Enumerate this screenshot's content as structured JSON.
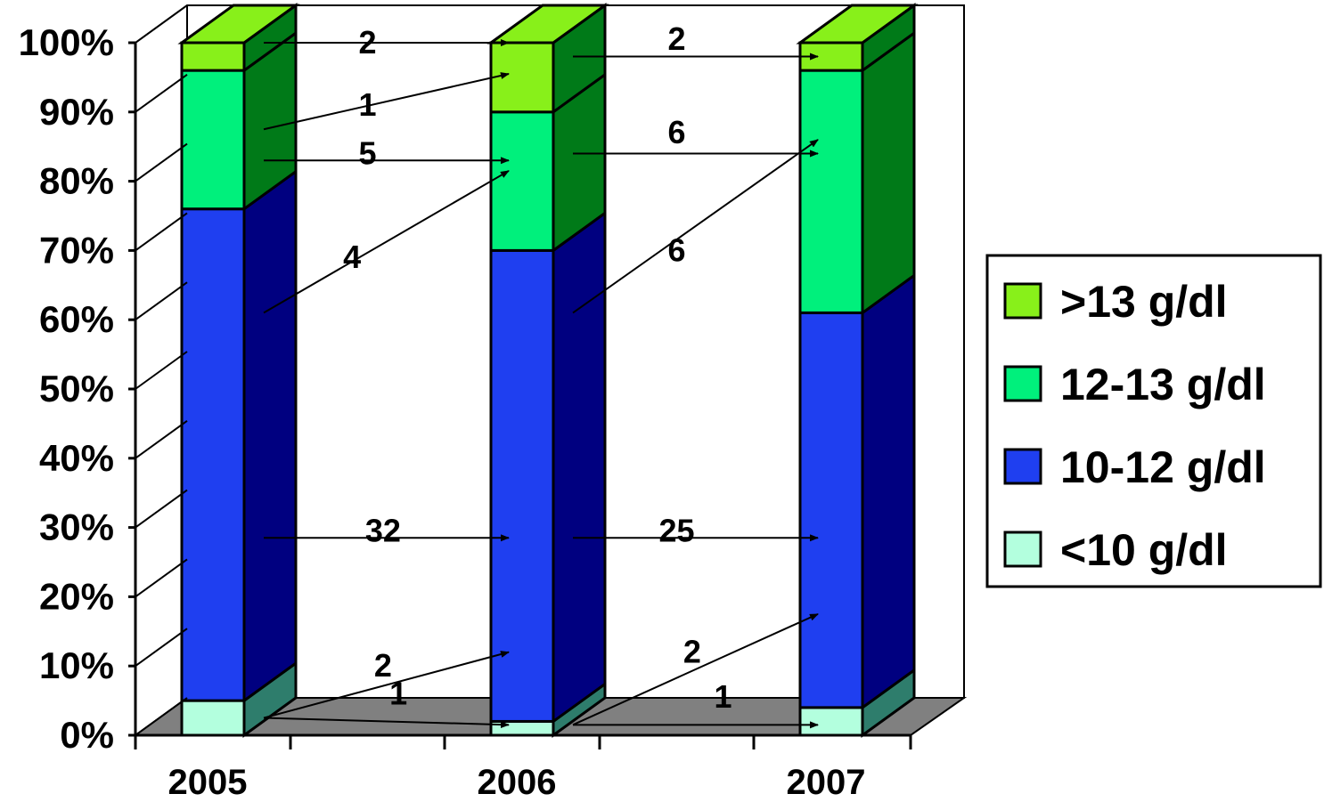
{
  "chart_data": {
    "type": "bar",
    "stacked": true,
    "normalized_percent": true,
    "three_d": true,
    "categories": [
      "2005",
      "2006",
      "2007"
    ],
    "y_ticks": [
      "0%",
      "10%",
      "20%",
      "30%",
      "40%",
      "50%",
      "60%",
      "70%",
      "80%",
      "90%",
      "100%"
    ],
    "ylim": [
      0,
      100
    ],
    "series": [
      {
        "name": "<10 g/dl",
        "color": "#b3ffde",
        "side_color": "#2e7d6c",
        "values": [
          5,
          2,
          4
        ]
      },
      {
        "name": "10-12 g/dl",
        "color": "#1f3ff0",
        "side_color": "#000080",
        "values": [
          71,
          68,
          57
        ]
      },
      {
        "name": "12-13 g/dl",
        "color": "#00f07c",
        "side_color": "#007a18",
        "values": [
          20,
          20,
          35
        ]
      },
      {
        "name": ">13 g/dl",
        "color": "#88f01a",
        "side_color": "#007a18",
        "values": [
          4,
          10,
          4
        ]
      }
    ],
    "legend": {
      "position": "right",
      "order": [
        ">13 g/dl",
        "12-13 g/dl",
        "10-12 g/dl",
        "<10 g/dl"
      ]
    },
    "floor_color": "#808080",
    "annotations": [
      {
        "text": "2",
        "from": [
          "2005",
          100
        ],
        "to": [
          "2006",
          100
        ],
        "label_at": [
          0.5,
          100
        ]
      },
      {
        "text": "1",
        "from": [
          "2005",
          87.5
        ],
        "to": [
          "2006",
          95.5
        ],
        "label_at": [
          0.5,
          91
        ]
      },
      {
        "text": "5",
        "from": [
          "2005",
          83
        ],
        "to": [
          "2006",
          83
        ],
        "label_at": [
          0.5,
          84
        ]
      },
      {
        "text": "4",
        "from": [
          "2005",
          61
        ],
        "to": [
          "2006",
          81.5
        ],
        "label_at": [
          0.45,
          69
        ]
      },
      {
        "text": "32",
        "from": [
          "2005",
          28.5
        ],
        "to": [
          "2006",
          28.5
        ],
        "label_at": [
          0.55,
          29.5
        ]
      },
      {
        "text": "2",
        "from": [
          "2005",
          2.5
        ],
        "to": [
          "2006",
          12
        ],
        "label_at": [
          0.55,
          10
        ]
      },
      {
        "text": "1",
        "from": [
          "2005",
          2.5
        ],
        "to": [
          "2006",
          1.5
        ],
        "label_at": [
          0.6,
          6
        ]
      },
      {
        "text": "2",
        "from": [
          "2006",
          98
        ],
        "to": [
          "2007",
          98
        ],
        "label_at": [
          1.5,
          100.5
        ]
      },
      {
        "text": "6",
        "from": [
          "2006",
          84
        ],
        "to": [
          "2007",
          84
        ],
        "label_at": [
          1.5,
          87
        ]
      },
      {
        "text": "6",
        "from": [
          "2006",
          61
        ],
        "to": [
          "2007",
          86
        ],
        "label_at": [
          1.5,
          70
        ]
      },
      {
        "text": "25",
        "from": [
          "2006",
          28.5
        ],
        "to": [
          "2007",
          28.5
        ],
        "label_at": [
          1.5,
          29.5
        ]
      },
      {
        "text": "2",
        "from": [
          "2006",
          1.5
        ],
        "to": [
          "2007",
          17.5
        ],
        "label_at": [
          1.55,
          12
        ]
      },
      {
        "text": "1",
        "from": [
          "2006",
          1.5
        ],
        "to": [
          "2007",
          1.5
        ],
        "label_at": [
          1.65,
          5.5
        ]
      }
    ]
  }
}
